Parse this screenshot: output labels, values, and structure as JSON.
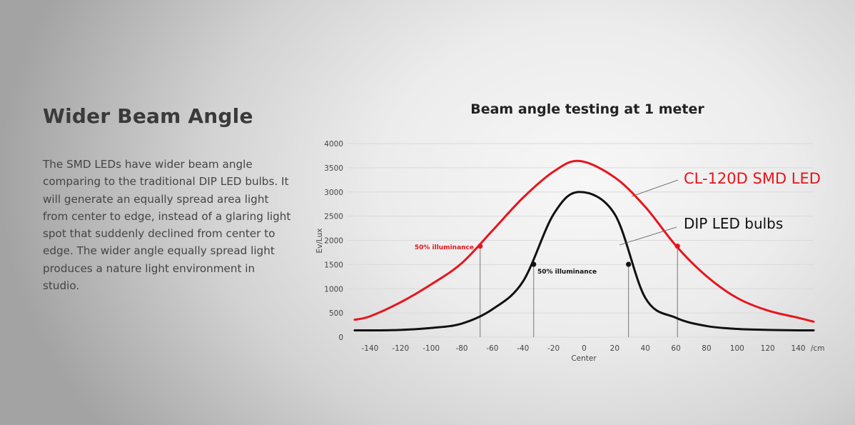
{
  "section": {
    "heading": "Wider Beam Angle",
    "paragraph": "The SMD LEDs have wider beam angle comparing to the traditional DIP LED bulbs. It will generate an equally spread area light from center to edge, instead of a glaring light spot that suddenly declined from center to edge. The wider angle equally spread light produces a nature light environment in studio."
  },
  "chart_data": {
    "type": "line",
    "title": "Beam angle testing at 1 meter",
    "xlabel": "Center",
    "x_unit_label": "/cm",
    "ylabel": "Ev/Lux",
    "xlim": [
      -150,
      150
    ],
    "ylim": [
      0,
      4000
    ],
    "x_ticks": [
      -140,
      -120,
      -100,
      -80,
      -60,
      -40,
      -20,
      0,
      20,
      40,
      60,
      80,
      100,
      120,
      140
    ],
    "y_ticks": [
      0,
      500,
      1000,
      1500,
      2000,
      2500,
      3000,
      3500,
      4000
    ],
    "grid": "horizontal",
    "x": [
      -150,
      -140,
      -120,
      -100,
      -80,
      -60,
      -40,
      -20,
      -3,
      20,
      40,
      60,
      80,
      100,
      120,
      140,
      150
    ],
    "series": [
      {
        "name": "CL-120D SMD LED",
        "color": "#e8141c",
        "values": [
          360,
          430,
          720,
          1090,
          1530,
          2200,
          2880,
          3420,
          3640,
          3300,
          2690,
          1890,
          1260,
          810,
          550,
          400,
          320
        ]
      },
      {
        "name": "DIP LED bulbs",
        "color": "#111111",
        "values": [
          140,
          140,
          150,
          190,
          280,
          575,
          1150,
          2540,
          3000,
          2540,
          810,
          400,
          230,
          170,
          150,
          140,
          140
        ]
      }
    ],
    "annotations": [
      {
        "series": 0,
        "label": "50% illuminance",
        "points": [
          [
            -68,
            1880
          ],
          [
            61,
            1880
          ]
        ],
        "color": "#e8141c"
      },
      {
        "series": 1,
        "label": "50% illuminance",
        "points": [
          [
            -33,
            1505
          ],
          [
            29,
            1505
          ]
        ],
        "color": "#111111"
      }
    ]
  }
}
